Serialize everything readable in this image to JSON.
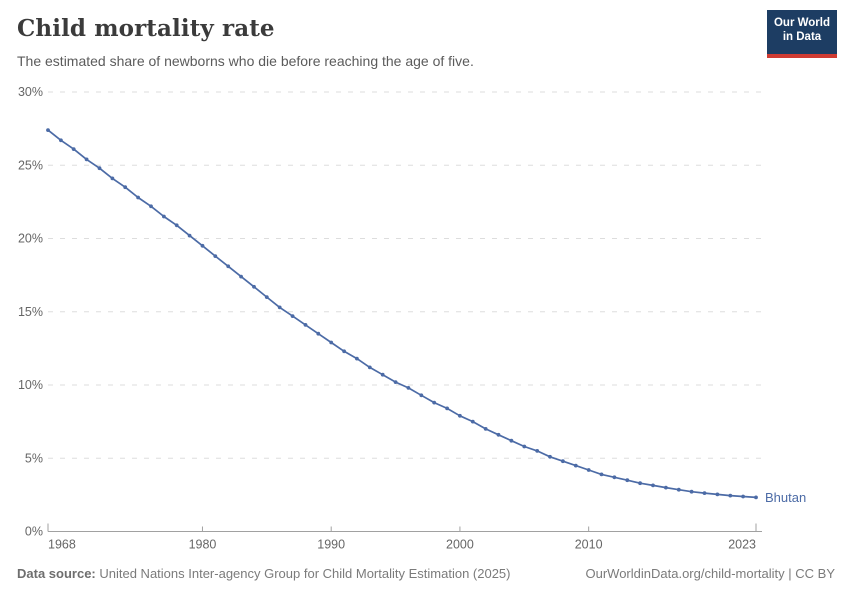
{
  "header": {
    "title": "Child mortality rate",
    "subtitle": "The estimated share of newborns who die before reaching the age of five.",
    "logo": {
      "line1": "Our World",
      "line2": "in Data",
      "bg_color": "#1d3d63",
      "accent_color": "#cf3b32"
    }
  },
  "chart_data": {
    "type": "line",
    "title": "Child mortality rate",
    "entity": "Bhutan",
    "unit": "%",
    "x_range": [
      1968,
      2023
    ],
    "x": [
      1968,
      1969,
      1970,
      1971,
      1972,
      1973,
      1974,
      1975,
      1976,
      1977,
      1978,
      1979,
      1980,
      1981,
      1982,
      1983,
      1984,
      1985,
      1986,
      1987,
      1988,
      1989,
      1990,
      1991,
      1992,
      1993,
      1994,
      1995,
      1996,
      1997,
      1998,
      1999,
      2000,
      2001,
      2002,
      2003,
      2004,
      2005,
      2006,
      2007,
      2008,
      2009,
      2010,
      2011,
      2012,
      2013,
      2014,
      2015,
      2016,
      2017,
      2018,
      2019,
      2020,
      2021,
      2022,
      2023
    ],
    "series": [
      {
        "name": "Bhutan",
        "color": "#4c6ba6",
        "values": [
          27.4,
          26.7,
          26.1,
          25.4,
          24.8,
          24.1,
          23.5,
          22.8,
          22.2,
          21.5,
          20.9,
          20.2,
          19.5,
          18.8,
          18.1,
          17.4,
          16.7,
          16.0,
          15.3,
          14.7,
          14.1,
          13.5,
          12.9,
          12.3,
          11.8,
          11.2,
          10.7,
          10.2,
          9.8,
          9.3,
          8.8,
          8.4,
          7.9,
          7.5,
          7.0,
          6.6,
          6.2,
          5.8,
          5.5,
          5.1,
          4.8,
          4.5,
          4.2,
          3.9,
          3.7,
          3.5,
          3.3,
          3.15,
          3.0,
          2.85,
          2.72,
          2.62,
          2.53,
          2.45,
          2.39,
          2.33
        ]
      }
    ],
    "ylim": [
      0,
      30
    ],
    "yticks": [
      0,
      5,
      10,
      15,
      20,
      25,
      30
    ],
    "ytick_suffix": "%",
    "xticks": [
      1968,
      1980,
      1990,
      2000,
      2010,
      2023
    ],
    "grid": "horizontal-dashed",
    "legend_position": "end-of-line",
    "colors": {
      "grid": "#dddddd",
      "axis": "#a1a1a1",
      "tick_label": "#666666"
    }
  },
  "footer": {
    "datasource_label": "Data source:",
    "datasource_text": " United Nations Inter-agency Group for Child Mortality Estimation (2025)",
    "link_text": "OurWorldinData.org/child-mortality | CC BY"
  }
}
